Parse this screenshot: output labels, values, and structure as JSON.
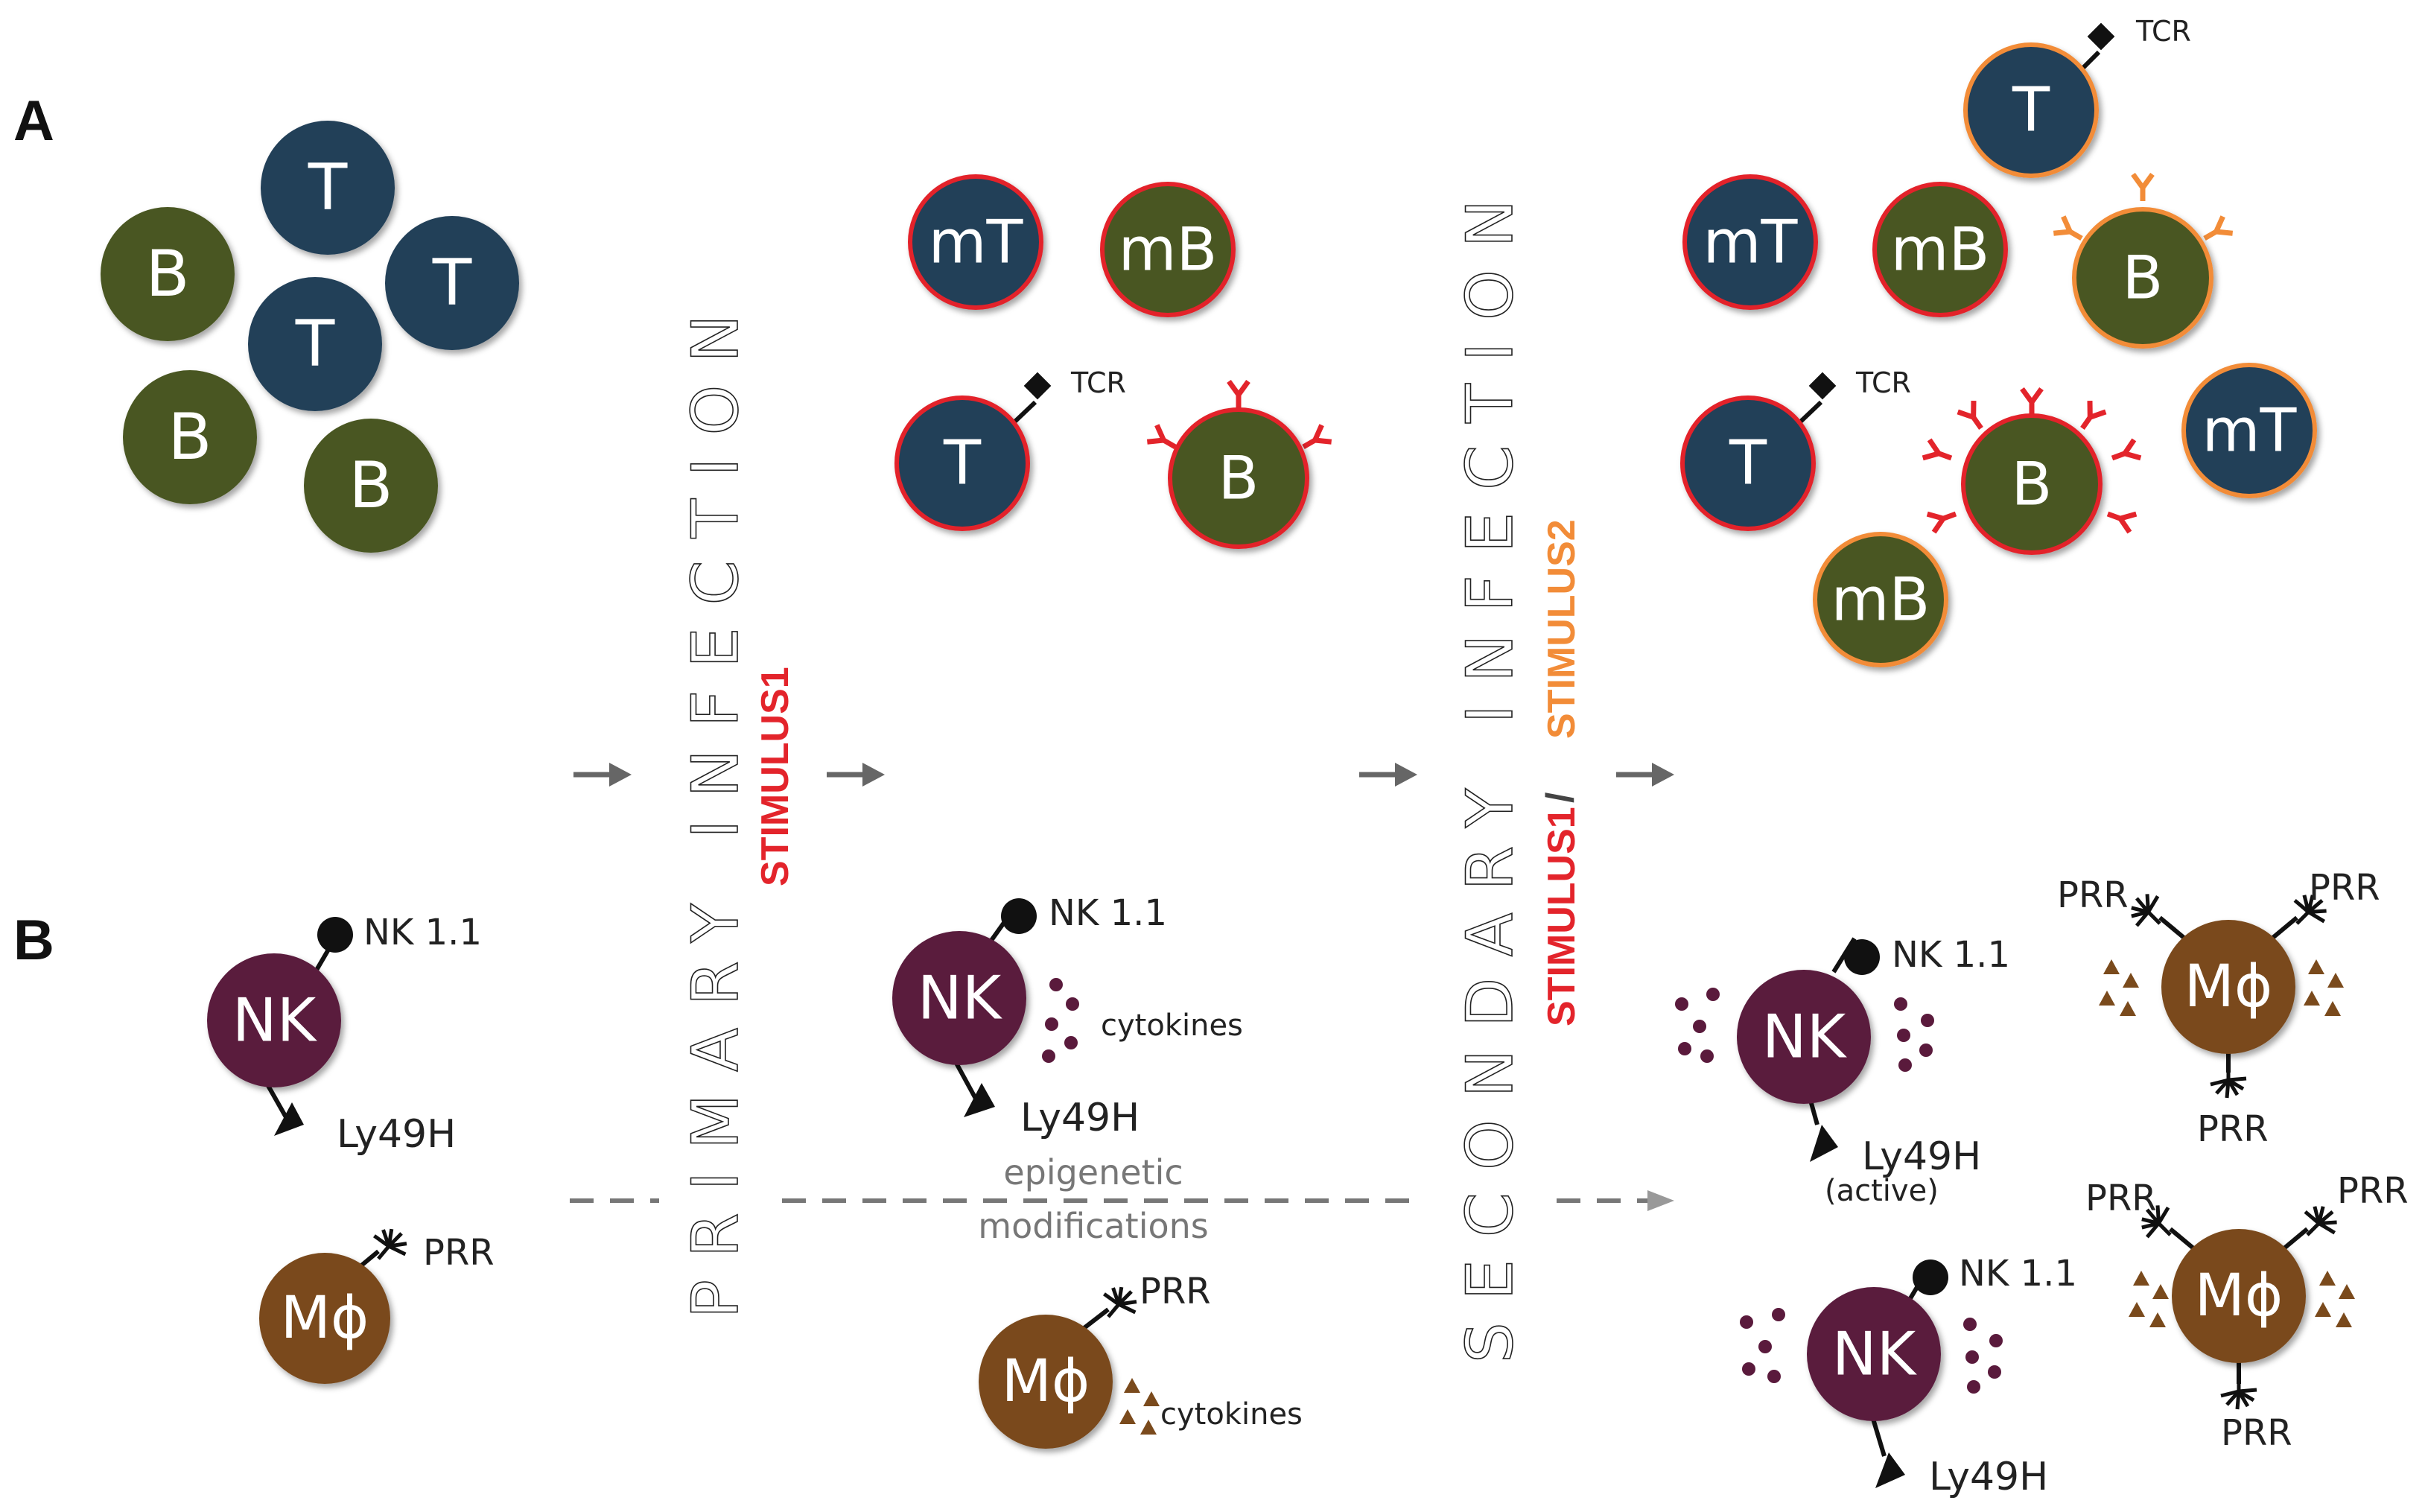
{
  "panels": {
    "a": "A",
    "b": "B"
  },
  "phases": {
    "primary": "PRIMARY INFECTION",
    "primary_stimulus": "STIMULUS1",
    "secondary": "SECONDARY INFECTION",
    "secondary_stimulus_1": "STIMULUS1",
    "secondary_slash": "/",
    "secondary_stimulus_2": "STIMULUS2"
  },
  "cells": {
    "t": "T",
    "b": "B",
    "mt": "mT",
    "mb": "mB",
    "nk": "NK",
    "macrophage": "Mϕ"
  },
  "receptors": {
    "tcr": "TCR",
    "nk11": "NK 1.1",
    "ly49h": "Ly49H",
    "prr": "PRR",
    "cytokines": "cytokines",
    "active": "(active)"
  },
  "epigenetic": {
    "line1": "epigenetic",
    "line2": "modifications"
  },
  "colors": {
    "t_cell": "#223f58",
    "b_cell": "#4a5720",
    "nk_cell": "#5a1a3c",
    "macrophage": "#7a4a1c",
    "stimulus1": "#e3242b",
    "stimulus2": "#f28c38",
    "arrow": "#666666",
    "dots": "#5a1a3c",
    "triangles": "#7a4a1c"
  }
}
